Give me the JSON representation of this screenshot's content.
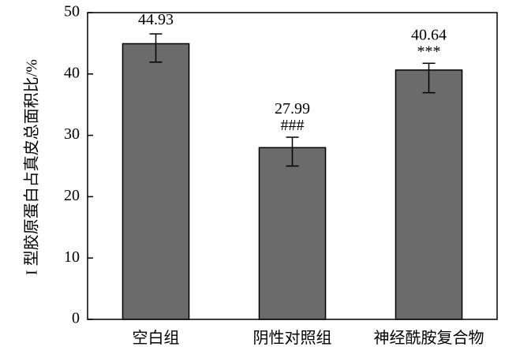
{
  "chart_data": {
    "type": "bar",
    "y_label": "I 型胶原蛋白占真皮总面积比/%",
    "categories": [
      "空白组",
      "阴性对照组",
      "神经酰胺复合物"
    ],
    "values": [
      44.93,
      27.99,
      40.64
    ],
    "error_plus": [
      1.6,
      1.7,
      1.1
    ],
    "error_minus": [
      3.0,
      3.0,
      3.7
    ],
    "annotations": [
      null,
      "###",
      "***"
    ],
    "color": "#6b6b6b",
    "ylim": [
      0,
      50
    ],
    "yticks": [
      0,
      10,
      20,
      30,
      40,
      50
    ]
  }
}
